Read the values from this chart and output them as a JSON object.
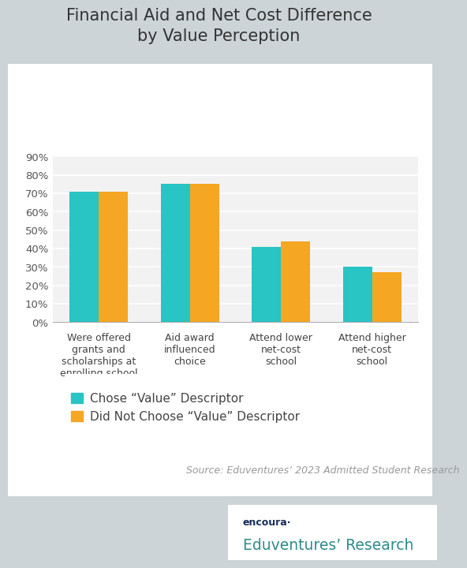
{
  "title": "Financial Aid and Net Cost Difference\nby Value Perception",
  "categories": [
    "Were offered\ngrants and\nscholarships at\nenrolling school",
    "Aid award\ninfluenced\nchoice",
    "Attend lower\nnet-cost\nschool",
    "Attend higher\nnet-cost\nschool"
  ],
  "series1_label": "Chose “Value” Descriptor",
  "series2_label": "Did Not Choose “Value” Descriptor",
  "series1_values": [
    0.71,
    0.75,
    0.41,
    0.3
  ],
  "series2_values": [
    0.71,
    0.75,
    0.44,
    0.27
  ],
  "series1_color": "#29C4C4",
  "series2_color": "#F5A623",
  "bg_outer": "#ccd4d8",
  "bg_card": "#ffffff",
  "bg_panel": "#f2f2f2",
  "ylim": [
    0,
    0.9
  ],
  "yticks": [
    0.0,
    0.1,
    0.2,
    0.3,
    0.4,
    0.5,
    0.6,
    0.7,
    0.8,
    0.9
  ],
  "ytick_labels": [
    "0%",
    "10%",
    "20%",
    "30%",
    "40%",
    "50%",
    "60%",
    "70%",
    "80%",
    "90%"
  ],
  "source_text": "Source: Eduventures’ 2023 Admitted Student Research",
  "bar_width": 0.32,
  "title_fontsize": 15,
  "axis_fontsize": 9.5,
  "legend_fontsize": 11,
  "source_fontsize": 9,
  "encoura_text": "encoura·",
  "eduvent_text": "Eduventures’ Research",
  "logo_box_color": "#ffffff",
  "encoura_color": "#1a2e5a",
  "eduvent_color": "#2e8b8b",
  "grid_color": "#ffffff",
  "spine_color": "#aaaaaa"
}
